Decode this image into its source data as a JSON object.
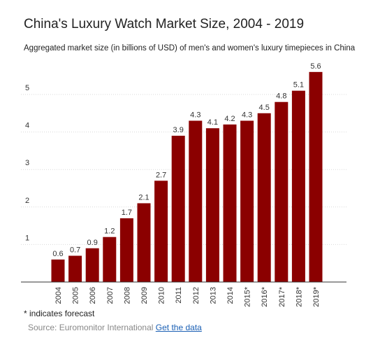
{
  "chart_data": {
    "type": "bar",
    "title": "China's Luxury Watch Market Size, 2004 - 2019",
    "subtitle": "Aggregated market size (in billions of USD) of men's and women's luxury timepieces in China",
    "categories": [
      "2004",
      "2005",
      "2006",
      "2007",
      "2008",
      "2009",
      "2010",
      "2011",
      "2012",
      "2013",
      "2014",
      "2015*",
      "2016*",
      "2017*",
      "2018*",
      "2019*"
    ],
    "values": [
      0.6,
      0.7,
      0.9,
      1.2,
      1.7,
      2.1,
      2.7,
      3.9,
      4.3,
      4.1,
      4.2,
      4.3,
      4.5,
      4.8,
      5.1,
      5.6
    ],
    "data_labels": [
      "0.6",
      "0.7",
      "0.9",
      "1.2",
      "1.7",
      "2.1",
      "2.7",
      "3.9",
      "4.3",
      "4.1",
      "4.2",
      "4.3",
      "4.5",
      "4.8",
      "5.1",
      "5.6"
    ],
    "y_ticks": [
      "1",
      "2",
      "3",
      "4",
      "5"
    ],
    "ylim": [
      0,
      5.6
    ],
    "grid": true,
    "bar_color": "#8b0000",
    "footnote": "* indicates forecast",
    "source_prefix": "Source: Euromonitor International",
    "source_link": "Get the data"
  }
}
